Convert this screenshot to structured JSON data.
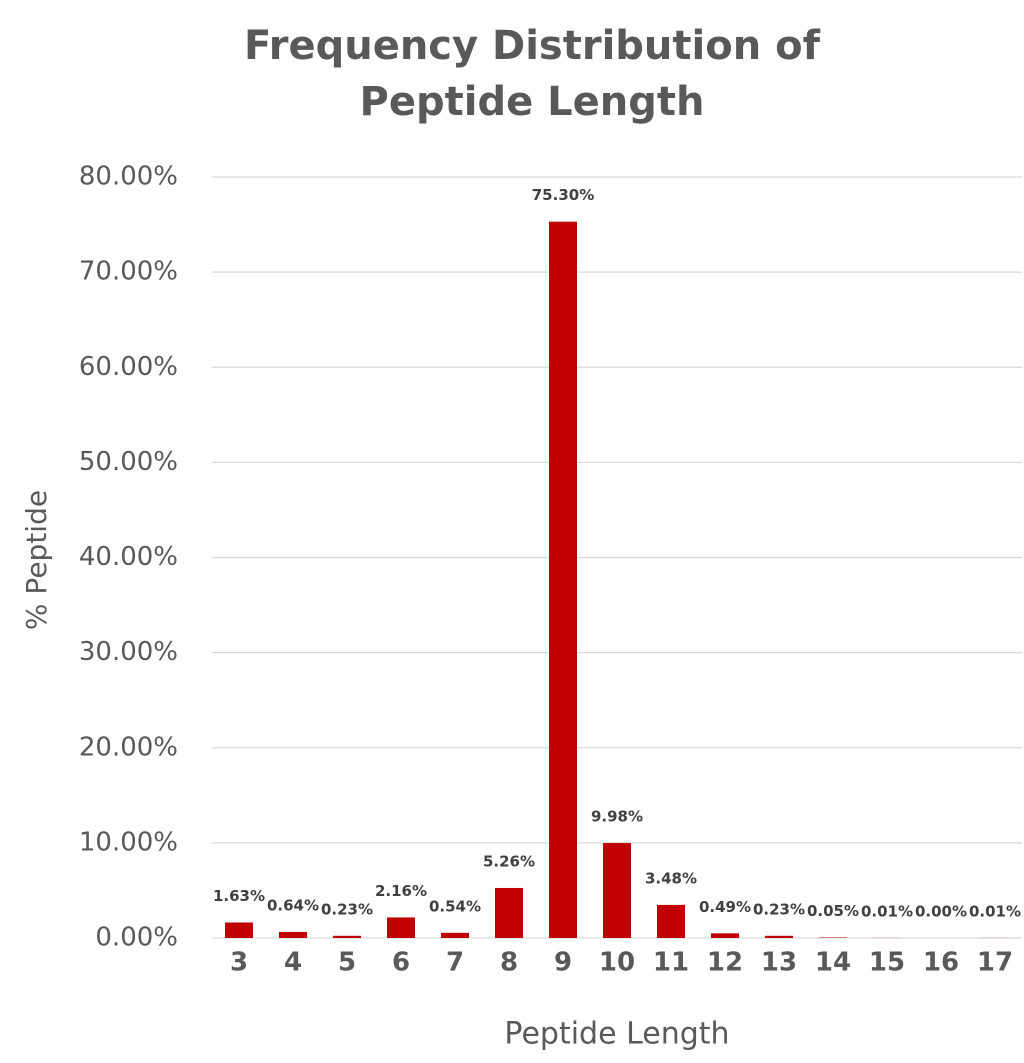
{
  "chart_data": {
    "type": "bar",
    "title": "Frequency Distribution of Peptide Length",
    "x_label": "Peptide Length",
    "y_label": "% Peptide",
    "categories": [
      "3",
      "4",
      "5",
      "6",
      "7",
      "8",
      "9",
      "10",
      "11",
      "12",
      "13",
      "14",
      "15",
      "16",
      "17"
    ],
    "values": [
      1.63,
      0.64,
      0.23,
      2.16,
      0.54,
      5.26,
      75.3,
      9.98,
      3.48,
      0.49,
      0.23,
      0.05,
      0.01,
      0.0,
      0.01
    ],
    "value_labels": [
      "1.63%",
      "0.64%",
      "0.23%",
      "2.16%",
      "0.54%",
      "5.26%",
      "75.30%",
      "9.98%",
      "3.48%",
      "0.49%",
      "0.23%",
      "0.05%",
      "0.01%",
      "0.00%",
      "0.01%"
    ],
    "color": "#c00000",
    "ylim": [
      0,
      80
    ],
    "yticks": [
      {
        "value": 0,
        "label": "0.00%"
      },
      {
        "value": 10,
        "label": "10.00%"
      },
      {
        "value": 20,
        "label": "20.00%"
      },
      {
        "value": 30,
        "label": "30.00%"
      },
      {
        "value": 40,
        "label": "40.00%"
      },
      {
        "value": 50,
        "label": "50.00%"
      },
      {
        "value": 60,
        "label": "60.00%"
      },
      {
        "value": 70,
        "label": "70.00%"
      },
      {
        "value": 80,
        "label": "80.00%"
      }
    ],
    "grid": true
  }
}
